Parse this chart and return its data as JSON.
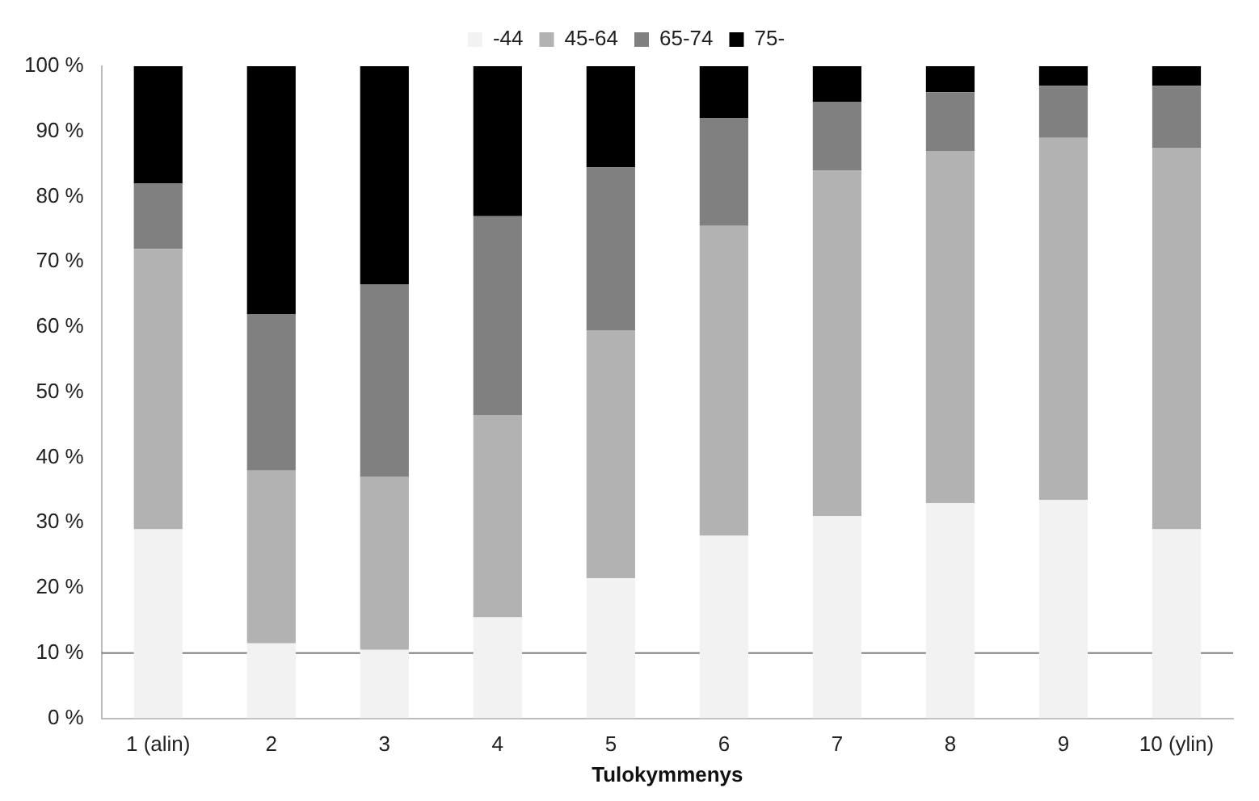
{
  "chart_data": {
    "type": "bar",
    "stacked": true,
    "xlabel": "Tulokymmenys",
    "categories": [
      "1 (alin)",
      "2",
      "3",
      "4",
      "5",
      "6",
      "7",
      "8",
      "9",
      "10 (ylin)"
    ],
    "series": [
      {
        "name": "-44",
        "color": "#f2f2f2",
        "values": [
          29,
          11.5,
          10.5,
          15.5,
          21.5,
          28,
          31,
          33,
          33.5,
          29
        ]
      },
      {
        "name": "45-64",
        "color": "#b2b2b2",
        "values": [
          43,
          26.5,
          26.5,
          31,
          38,
          47.5,
          53,
          54,
          55.5,
          58.5
        ]
      },
      {
        "name": "65-74",
        "color": "#808080",
        "values": [
          10,
          24,
          29.5,
          30.5,
          25,
          16.5,
          10.5,
          9,
          8,
          9.5
        ]
      },
      {
        "name": "75-",
        "color": "#000000",
        "values": [
          18,
          38,
          33.5,
          23,
          15.5,
          8,
          5.5,
          4,
          3,
          3
        ]
      }
    ],
    "ylim": [
      0,
      100
    ],
    "yticks": [
      {
        "value": 0,
        "label": "0 %"
      },
      {
        "value": 10,
        "label": "10 %"
      },
      {
        "value": 20,
        "label": "20 %"
      },
      {
        "value": 30,
        "label": "30 %"
      },
      {
        "value": 40,
        "label": "40 %"
      },
      {
        "value": 50,
        "label": "50 %"
      },
      {
        "value": 60,
        "label": "60 %"
      },
      {
        "value": 70,
        "label": "70 %"
      },
      {
        "value": 80,
        "label": "80 %"
      },
      {
        "value": 90,
        "label": "90 %"
      },
      {
        "value": 100,
        "label": "100 %"
      }
    ],
    "ref_lines": [
      {
        "axis": "y",
        "value": 10,
        "color": "#808080"
      }
    ],
    "grid": false,
    "legend": "top"
  }
}
